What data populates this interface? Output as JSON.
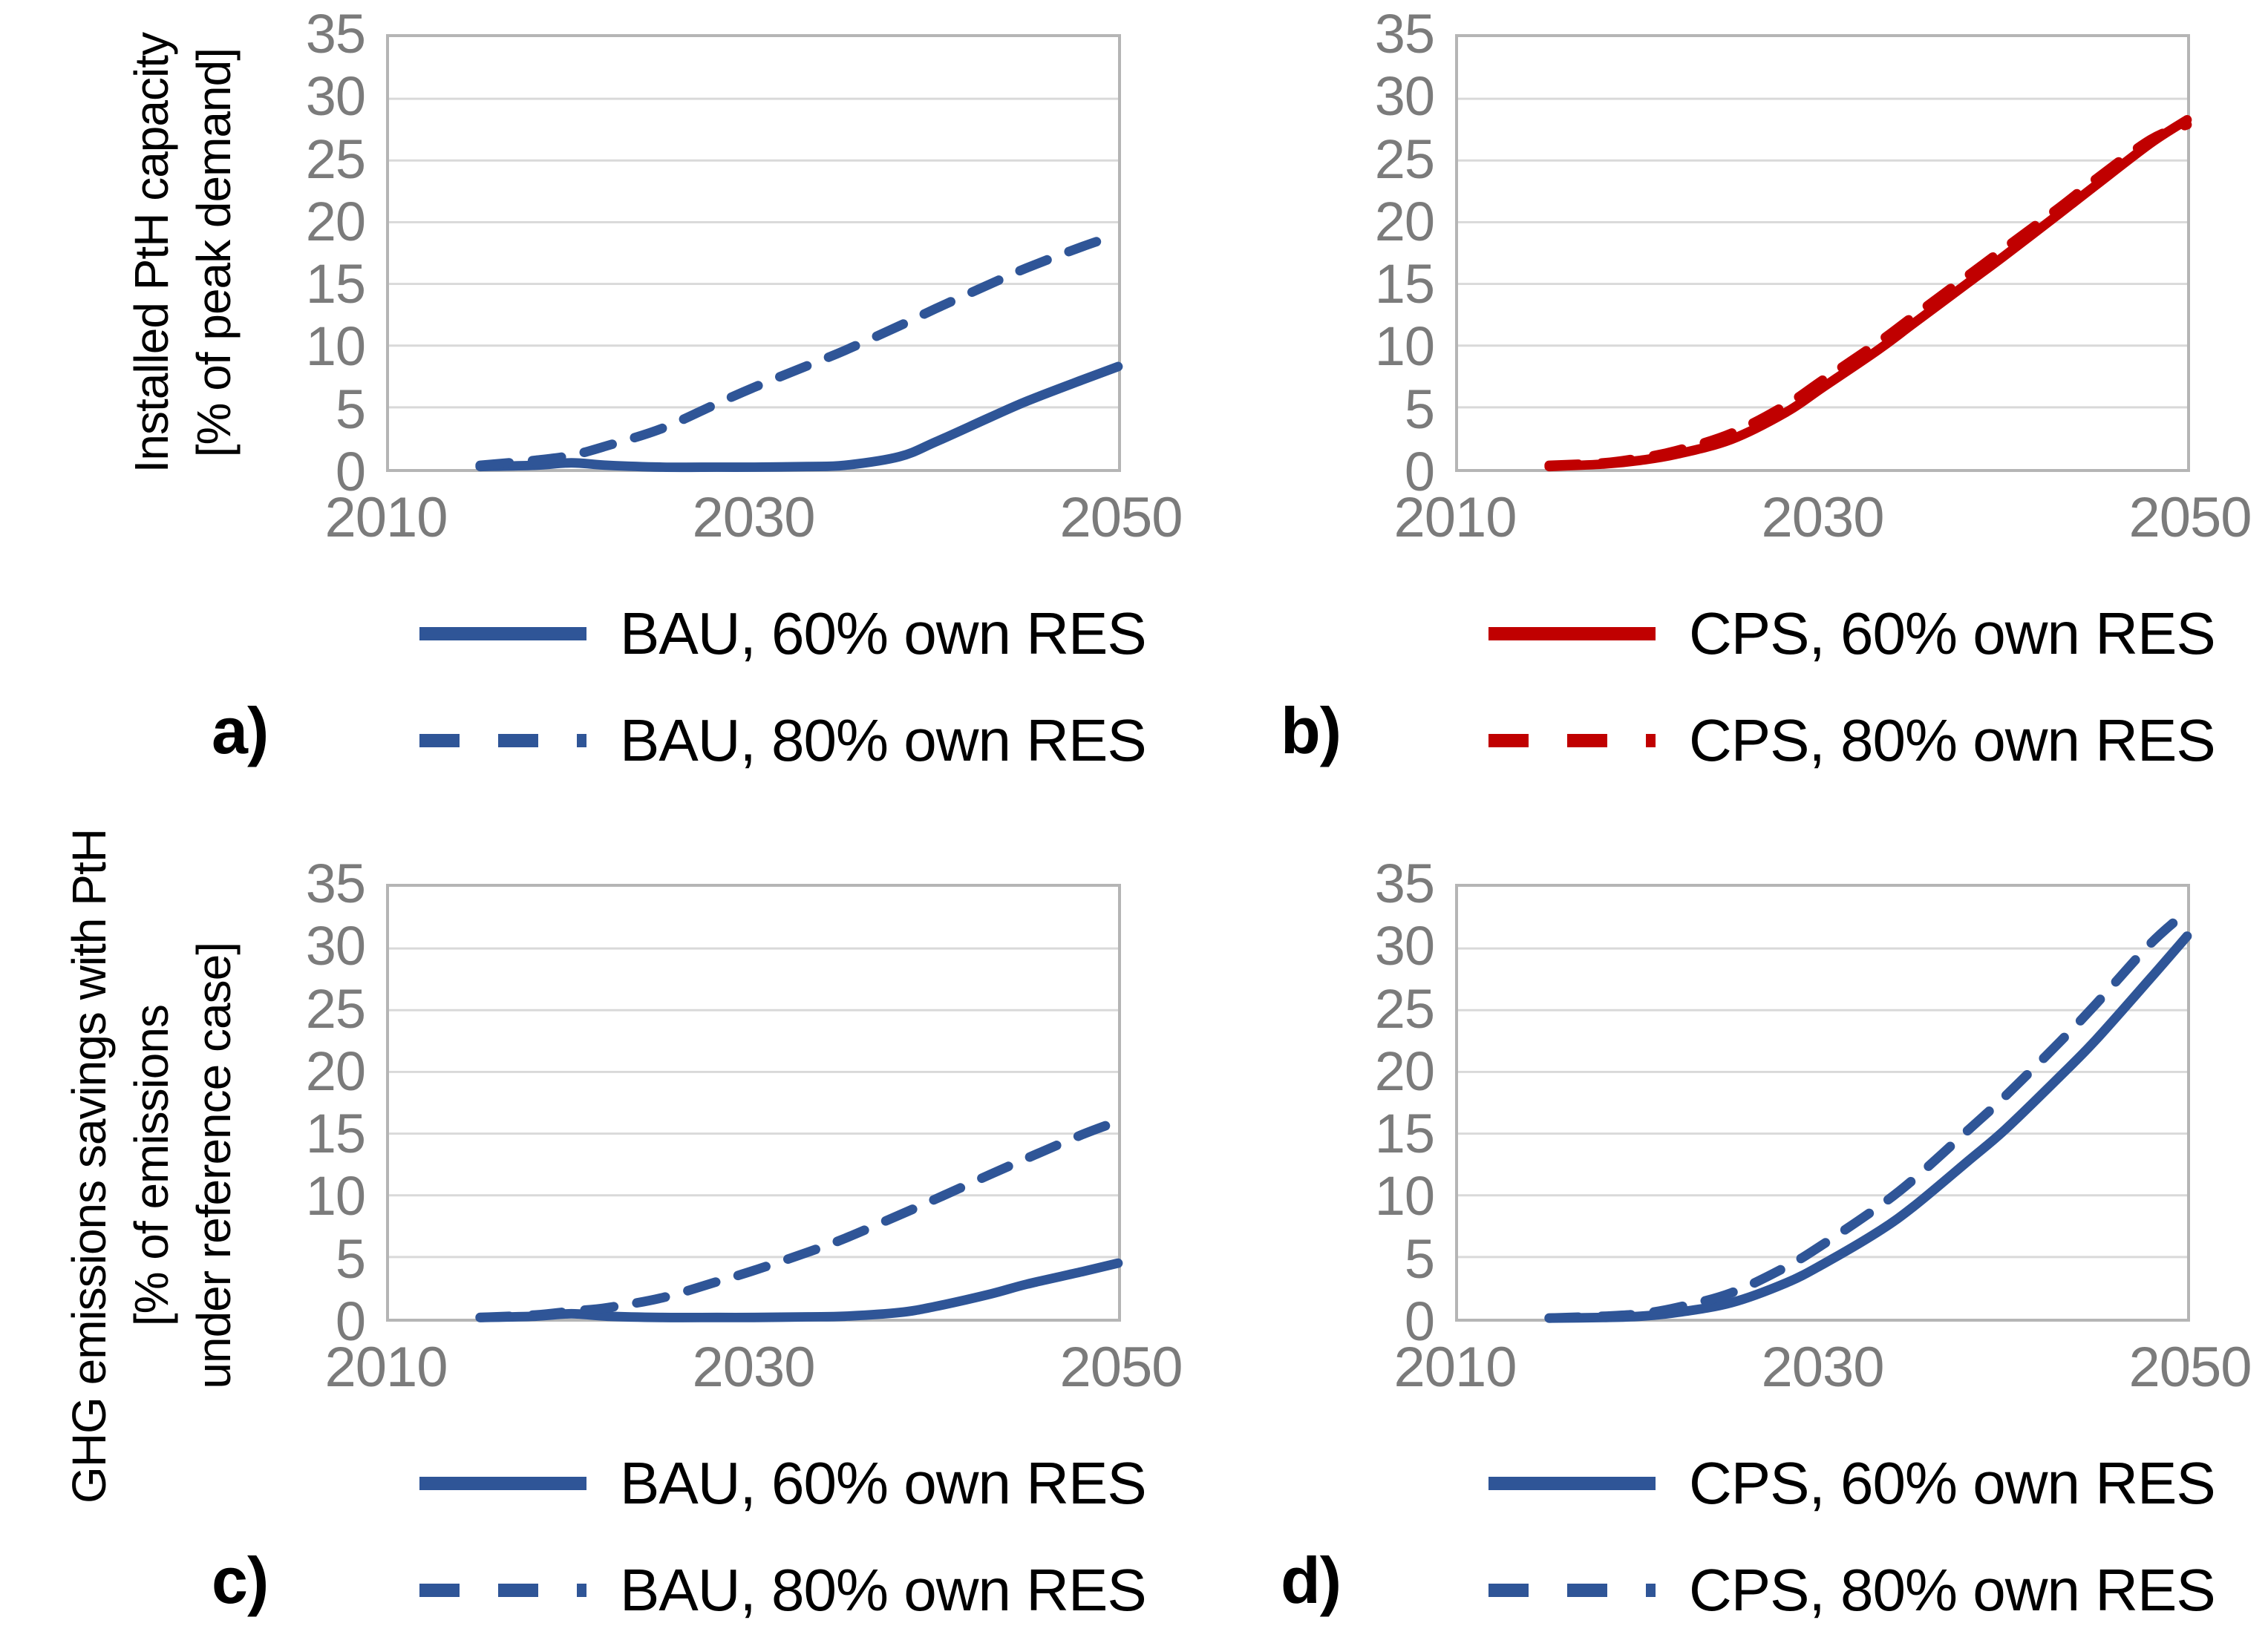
{
  "axis_titles": {
    "top": [
      "Installed PtH capacity",
      "[% of peak demand]"
    ],
    "bottom": [
      "GHG emissions savings with PtH",
      "[% of emissions",
      "under reference case]"
    ]
  },
  "colors": {
    "blue": "#2F5597",
    "red": "#C00000",
    "tick_text": "#7B7B7B",
    "gridline": "#D9D9D9",
    "plot_border": "#B5B5B5",
    "text": "#000000"
  },
  "panels": [
    {
      "id": "a",
      "letter": "a)",
      "legend": [
        {
          "label": "BAU, 60% own RES",
          "style": "solid",
          "color_key": "blue"
        },
        {
          "label": "BAU, 80% own RES",
          "style": "dashed",
          "color_key": "blue"
        }
      ]
    },
    {
      "id": "b",
      "letter": "b)",
      "legend": [
        {
          "label": "CPS, 60% own RES",
          "style": "solid",
          "color_key": "red"
        },
        {
          "label": "CPS, 80% own RES",
          "style": "dashed",
          "color_key": "red"
        }
      ]
    },
    {
      "id": "c",
      "letter": "c)",
      "legend": [
        {
          "label": "BAU, 60% own RES",
          "style": "solid",
          "color_key": "blue"
        },
        {
          "label": "BAU, 80% own RES",
          "style": "dashed",
          "color_key": "blue"
        }
      ]
    },
    {
      "id": "d",
      "letter": "d)",
      "legend": [
        {
          "label": "CPS, 60% own RES",
          "style": "solid",
          "color_key": "blue"
        },
        {
          "label": "CPS, 80% own RES",
          "style": "dashed",
          "color_key": "blue"
        }
      ]
    }
  ],
  "chart_data": [
    {
      "id": "a",
      "type": "line",
      "title": "",
      "ylabel": "Installed PtH capacity [% of peak demand]",
      "xlabel": "",
      "xlim": [
        2010,
        2050
      ],
      "ylim": [
        0,
        35
      ],
      "xticks": [
        2010,
        2030,
        2050
      ],
      "yticks": [
        0,
        5,
        10,
        15,
        20,
        25,
        30,
        35
      ],
      "grid": "horizontal",
      "legend_position": "below",
      "x": [
        2015,
        2018,
        2020,
        2022,
        2025,
        2028,
        2030,
        2033,
        2035,
        2038,
        2040,
        2043,
        2045,
        2048,
        2050
      ],
      "series": [
        {
          "name": "BAU, 60% own RES",
          "style": "solid",
          "color_key": "blue",
          "values": [
            0.2,
            0.3,
            0.5,
            0.3,
            0.15,
            0.15,
            0.15,
            0.2,
            0.3,
            1.0,
            2.2,
            4.2,
            5.5,
            7.2,
            8.3
          ]
        },
        {
          "name": "BAU, 80% own RES",
          "style": "dashed",
          "color_key": "blue",
          "values": [
            0.3,
            0.7,
            1.1,
            1.9,
            3.3,
            5.3,
            6.6,
            8.4,
            9.6,
            11.6,
            13.0,
            15.0,
            16.3,
            18.0,
            19.0
          ]
        }
      ]
    },
    {
      "id": "b",
      "type": "line",
      "title": "",
      "ylabel": "Installed PtH capacity [% of peak demand]",
      "xlabel": "",
      "xlim": [
        2010,
        2050
      ],
      "ylim": [
        0,
        35
      ],
      "xticks": [
        2010,
        2030,
        2050
      ],
      "yticks": [
        0,
        5,
        10,
        15,
        20,
        25,
        30,
        35
      ],
      "grid": "horizontal",
      "legend_position": "below",
      "x": [
        2015,
        2018,
        2020,
        2022,
        2025,
        2028,
        2030,
        2033,
        2035,
        2038,
        2040,
        2043,
        2045,
        2048,
        2050
      ],
      "series": [
        {
          "name": "CPS, 60% own RES",
          "style": "solid",
          "color_key": "red",
          "values": [
            0.2,
            0.4,
            0.7,
            1.2,
            2.4,
            4.6,
            6.6,
            9.6,
            11.8,
            15.1,
            17.3,
            20.7,
            23.0,
            26.4,
            28.3
          ]
        },
        {
          "name": "CPS, 80% own RES",
          "style": "dashed",
          "color_key": "red",
          "values": [
            0.3,
            0.5,
            0.9,
            1.5,
            2.9,
            5.2,
            7.2,
            10.2,
            12.4,
            15.7,
            17.9,
            21.2,
            23.5,
            26.7,
            27.9
          ]
        }
      ]
    },
    {
      "id": "c",
      "type": "line",
      "title": "",
      "ylabel": "GHG emissions savings with PtH [% of emissions under reference case]",
      "xlabel": "",
      "xlim": [
        2010,
        2050
      ],
      "ylim": [
        0,
        35
      ],
      "xticks": [
        2010,
        2030,
        2050
      ],
      "yticks": [
        0,
        5,
        10,
        15,
        20,
        25,
        30,
        35
      ],
      "grid": "horizontal",
      "legend_position": "below",
      "x": [
        2015,
        2018,
        2020,
        2022,
        2025,
        2028,
        2030,
        2033,
        2035,
        2038,
        2040,
        2043,
        2045,
        2048,
        2050
      ],
      "series": [
        {
          "name": "BAU, 60% own RES",
          "style": "solid",
          "color_key": "blue",
          "values": [
            0.1,
            0.2,
            0.4,
            0.2,
            0.1,
            0.1,
            0.1,
            0.15,
            0.2,
            0.5,
            1.0,
            2.0,
            2.8,
            3.8,
            4.5
          ]
        },
        {
          "name": "BAU, 80% own RES",
          "style": "dashed",
          "color_key": "blue",
          "values": [
            0.1,
            0.3,
            0.6,
            0.9,
            1.7,
            3.0,
            3.9,
            5.4,
            6.5,
            8.4,
            9.7,
            11.7,
            13.0,
            14.9,
            16.0
          ]
        }
      ]
    },
    {
      "id": "d",
      "type": "line",
      "title": "",
      "ylabel": "GHG emissions savings with PtH [% of emissions under reference case]",
      "xlabel": "",
      "xlim": [
        2010,
        2050
      ],
      "ylim": [
        0,
        35
      ],
      "xticks": [
        2010,
        2030,
        2050
      ],
      "yticks": [
        0,
        5,
        10,
        15,
        20,
        25,
        30,
        35
      ],
      "grid": "horizontal",
      "legend_position": "below",
      "x": [
        2015,
        2018,
        2020,
        2022,
        2025,
        2028,
        2030,
        2033,
        2035,
        2038,
        2040,
        2043,
        2045,
        2048,
        2050
      ],
      "series": [
        {
          "name": "CPS, 60% own RES",
          "style": "solid",
          "color_key": "blue",
          "values": [
            0.05,
            0.1,
            0.2,
            0.5,
            1.3,
            2.9,
            4.4,
            7.0,
            9.1,
            12.8,
            15.3,
            19.6,
            22.6,
            27.6,
            31.0
          ]
        },
        {
          "name": "CPS, 80% own RES",
          "style": "dashed",
          "color_key": "blue",
          "values": [
            0.05,
            0.2,
            0.4,
            0.9,
            2.1,
            4.2,
            6.0,
            9.0,
            11.3,
            15.3,
            18.0,
            22.4,
            25.5,
            30.4,
            33.0
          ]
        }
      ]
    }
  ]
}
